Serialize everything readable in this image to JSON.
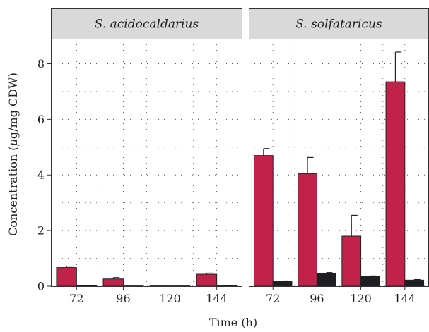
{
  "chart_data": {
    "type": "bar",
    "title": "",
    "xlabel": "Time (h)",
    "ylabel_parts": [
      "Concentration (",
      "μ",
      "g/mg CDW)"
    ],
    "ylim": [
      0,
      8.9
    ],
    "yticks": [
      0,
      2,
      4,
      6,
      8
    ],
    "categories": [
      "72",
      "96",
      "120",
      "144"
    ],
    "series_colors": [
      "#c0224a",
      "#1e1e22"
    ],
    "grid": true,
    "legend": "none",
    "panels": [
      {
        "strip": "S. acidocaldarius",
        "series": [
          {
            "values": [
              0.67,
              0.26,
              0.01,
              0.43
            ],
            "errors": [
              0.05,
              0.05,
              0.0,
              0.04
            ]
          },
          {
            "values": [
              0.02,
              0.01,
              0.01,
              0.02
            ],
            "errors": [
              0.0,
              0.0,
              0.0,
              0.0
            ]
          }
        ]
      },
      {
        "strip": "S. solfataricus",
        "series": [
          {
            "values": [
              4.7,
              4.05,
              1.8,
              7.35
            ],
            "errors": [
              0.25,
              0.58,
              0.75,
              1.07
            ]
          },
          {
            "values": [
              0.17,
              0.47,
              0.35,
              0.22
            ],
            "errors": [
              0.02,
              0.02,
              0.02,
              0.02
            ]
          }
        ]
      }
    ]
  }
}
